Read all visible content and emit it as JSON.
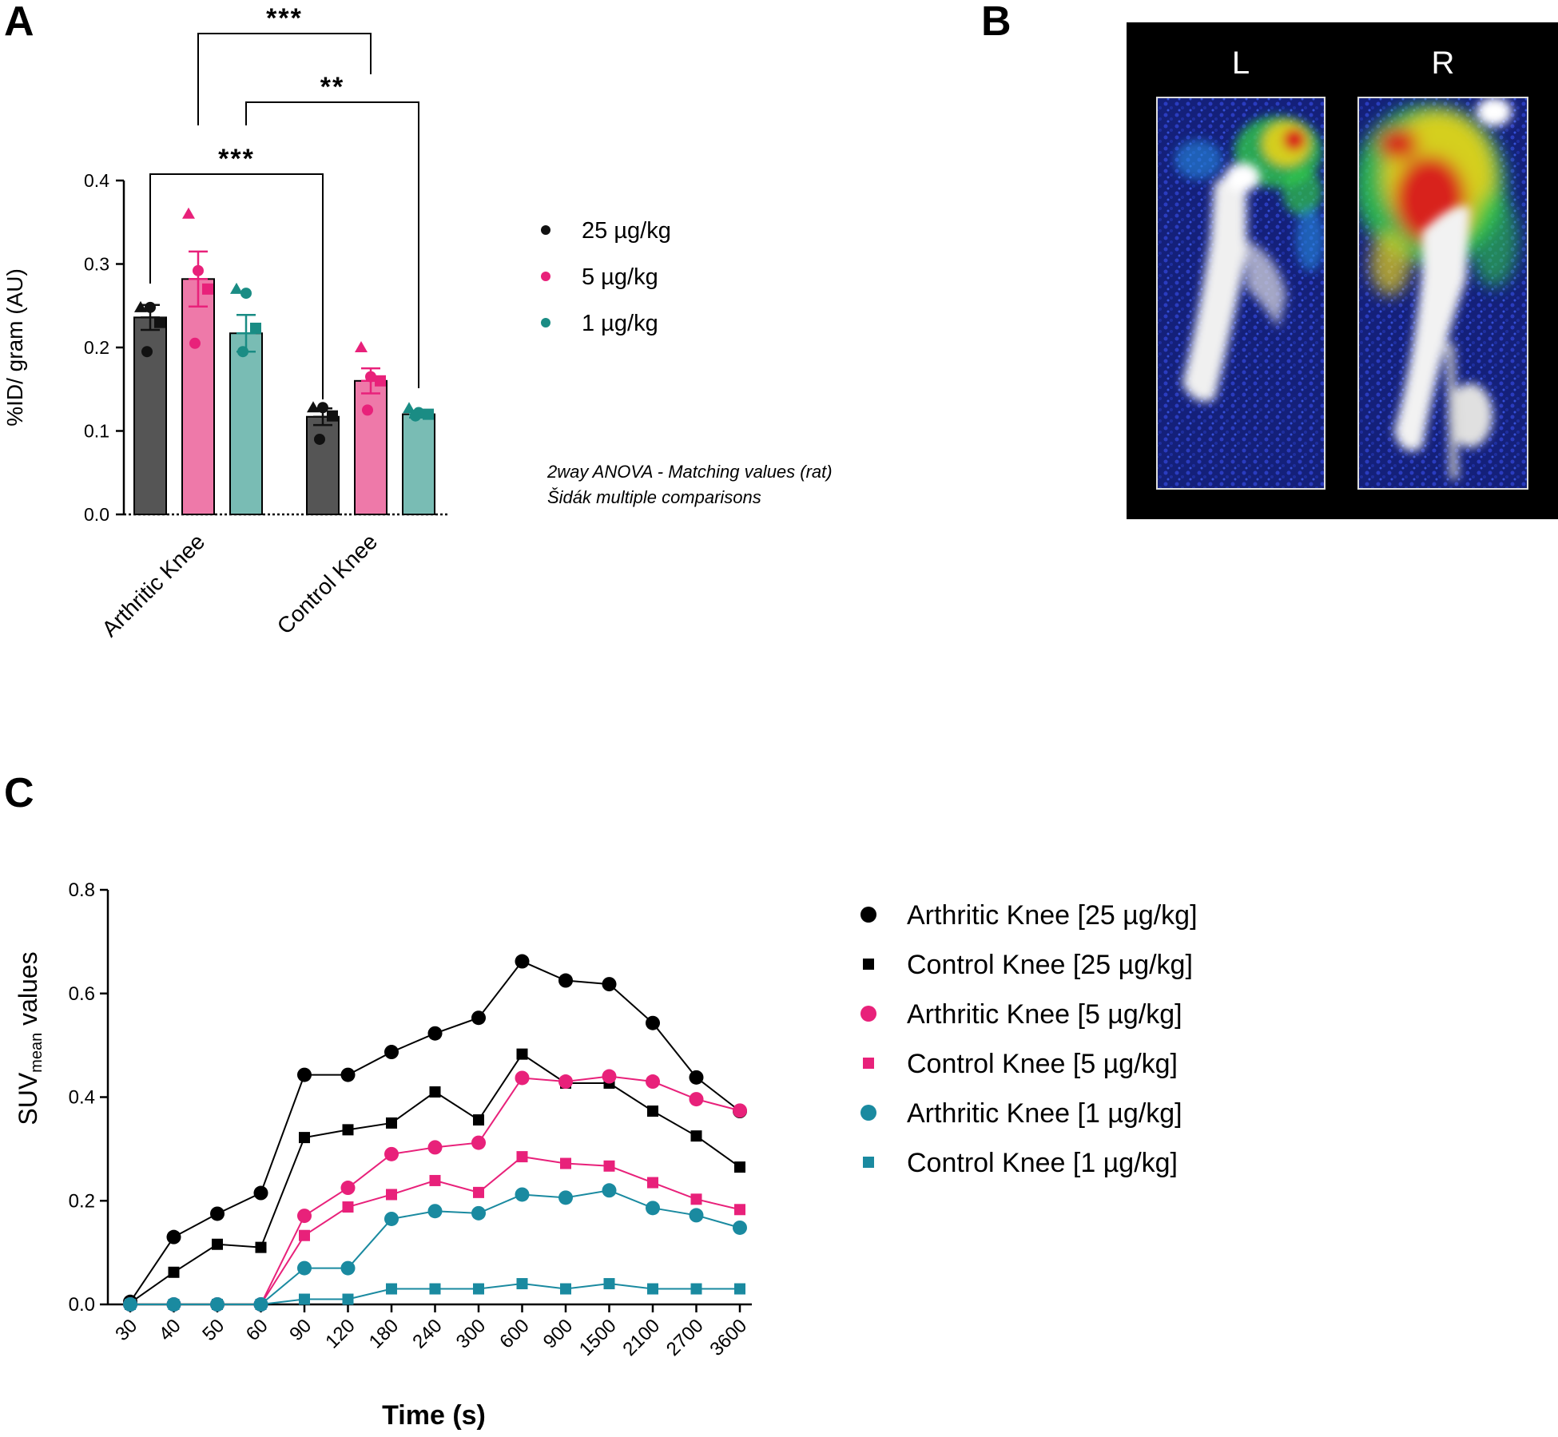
{
  "panels": {
    "a": "A",
    "b": "B",
    "c": "C"
  },
  "colors": {
    "black": "#555555",
    "black_dot": "#111111",
    "pink": "#ee79a9",
    "pink_dot": "#e8217a",
    "teal": "#79bcb4",
    "teal_dot": "#1a8c84",
    "c_black": "#000000",
    "c_pink": "#e8217a",
    "c_teal": "#1a8aa0"
  },
  "panel_a": {
    "ylabel": "%ID/ gram (AU)",
    "note_line1": "2way ANOVA - Matching values (rat)",
    "note_line2": "Šidák multiple comparisons",
    "significance": [
      "***",
      "**",
      "***"
    ],
    "legend": [
      {
        "label": "25 µg/kg",
        "color": "#111111"
      },
      {
        "label": "5 µg/kg",
        "color": "#e8217a"
      },
      {
        "label": "1 µg/kg",
        "color": "#1a8c84"
      }
    ]
  },
  "panel_b": {
    "left_label": "L",
    "right_label": "R"
  },
  "panel_c": {
    "ylabel_main": "SUV",
    "ylabel_sub": "mean",
    "ylabel_rest": " values",
    "xlabel": "Time (s)"
  },
  "chart_data": [
    {
      "type": "bar",
      "categories": [
        "Arthritic Knee",
        "Control Knee"
      ],
      "ylabel": "%ID/ gram (AU)",
      "ylim": [
        0.0,
        0.4
      ],
      "yticks": [
        "0.0",
        "0.1",
        "0.2",
        "0.3",
        "0.4"
      ],
      "series": [
        {
          "name": "25 µg/kg",
          "values": [
            0.236,
            0.117
          ],
          "sem": [
            0.015,
            0.01
          ],
          "points": [
            [
              0.248,
              0.248,
              0.23,
              0.195
            ],
            [
              0.128,
              0.128,
              0.118,
              0.09
            ]
          ]
        },
        {
          "name": "5 µg/kg",
          "values": [
            0.282,
            0.16
          ],
          "sem": [
            0.033,
            0.015
          ],
          "points": [
            [
              0.36,
              0.292,
              0.27,
              0.205
            ],
            [
              0.2,
              0.165,
              0.16,
              0.125
            ]
          ]
        },
        {
          "name": "1 µg/kg",
          "values": [
            0.217,
            0.12
          ],
          "sem": [
            0.022,
            0.004
          ],
          "points": [
            [
              0.27,
              0.265,
              0.223,
              0.195
            ],
            [
              0.127,
              0.122,
              0.12,
              0.118
            ]
          ]
        }
      ],
      "comparisons": [
        {
          "label": "***",
          "from": "Arthritic Knee 25 µg/kg",
          "to": "Control Knee 25 µg/kg"
        },
        {
          "label": "***",
          "from": "Arthritic Knee 5 µg/kg",
          "to": "Control Knee 5 µg/kg"
        },
        {
          "label": "**",
          "from": "Arthritic Knee 1 µg/kg",
          "to": "Control Knee 1 µg/kg"
        }
      ],
      "legend_position": "right"
    },
    {
      "type": "line",
      "x": [
        "30",
        "40",
        "50",
        "60",
        "90",
        "120",
        "180",
        "240",
        "300",
        "600",
        "900",
        "1500",
        "2100",
        "2700",
        "3600"
      ],
      "xlabel": "Time (s)",
      "ylabel": "SUVmean values",
      "ylim": [
        0.0,
        0.8
      ],
      "yticks": [
        "0.0",
        "0.2",
        "0.4",
        "0.6",
        "0.8"
      ],
      "series": [
        {
          "name": "Arthritic Knee [25 µg/kg]",
          "marker": "circle",
          "color": "#000000",
          "values": [
            0.005,
            0.13,
            0.175,
            0.215,
            0.443,
            0.443,
            0.487,
            0.523,
            0.553,
            0.662,
            0.625,
            0.618,
            0.543,
            0.438,
            0.373
          ]
        },
        {
          "name": "Control Knee [25 µg/kg]",
          "marker": "square",
          "color": "#000000",
          "values": [
            0.003,
            0.062,
            0.116,
            0.11,
            0.322,
            0.337,
            0.35,
            0.41,
            0.356,
            0.483,
            0.427,
            0.427,
            0.373,
            0.325,
            0.265
          ]
        },
        {
          "name": "Arthritic Knee [5 µg/kg]",
          "marker": "circle",
          "color": "#e8217a",
          "values": [
            0.0,
            0.0,
            0.0,
            0.0,
            0.171,
            0.225,
            0.29,
            0.303,
            0.312,
            0.437,
            0.43,
            0.44,
            0.43,
            0.396,
            0.374
          ]
        },
        {
          "name": "Control Knee [5 µg/kg]",
          "marker": "square",
          "color": "#e8217a",
          "values": [
            0.0,
            0.0,
            0.0,
            0.0,
            0.133,
            0.188,
            0.212,
            0.239,
            0.216,
            0.285,
            0.272,
            0.267,
            0.235,
            0.203,
            0.183
          ]
        },
        {
          "name": "Arthritic Knee [1 µg/kg]",
          "marker": "circle",
          "color": "#1a8aa0",
          "values": [
            0.0,
            0.0,
            0.0,
            0.0,
            0.07,
            0.07,
            0.165,
            0.18,
            0.176,
            0.212,
            0.206,
            0.22,
            0.186,
            0.172,
            0.148
          ]
        },
        {
          "name": "Control Knee [1 µg/kg]",
          "marker": "square",
          "color": "#1a8aa0",
          "values": [
            0.0,
            0.0,
            0.0,
            0.0,
            0.01,
            0.01,
            0.03,
            0.03,
            0.03,
            0.04,
            0.03,
            0.04,
            0.03,
            0.03,
            0.03
          ]
        }
      ],
      "legend_position": "right"
    }
  ]
}
